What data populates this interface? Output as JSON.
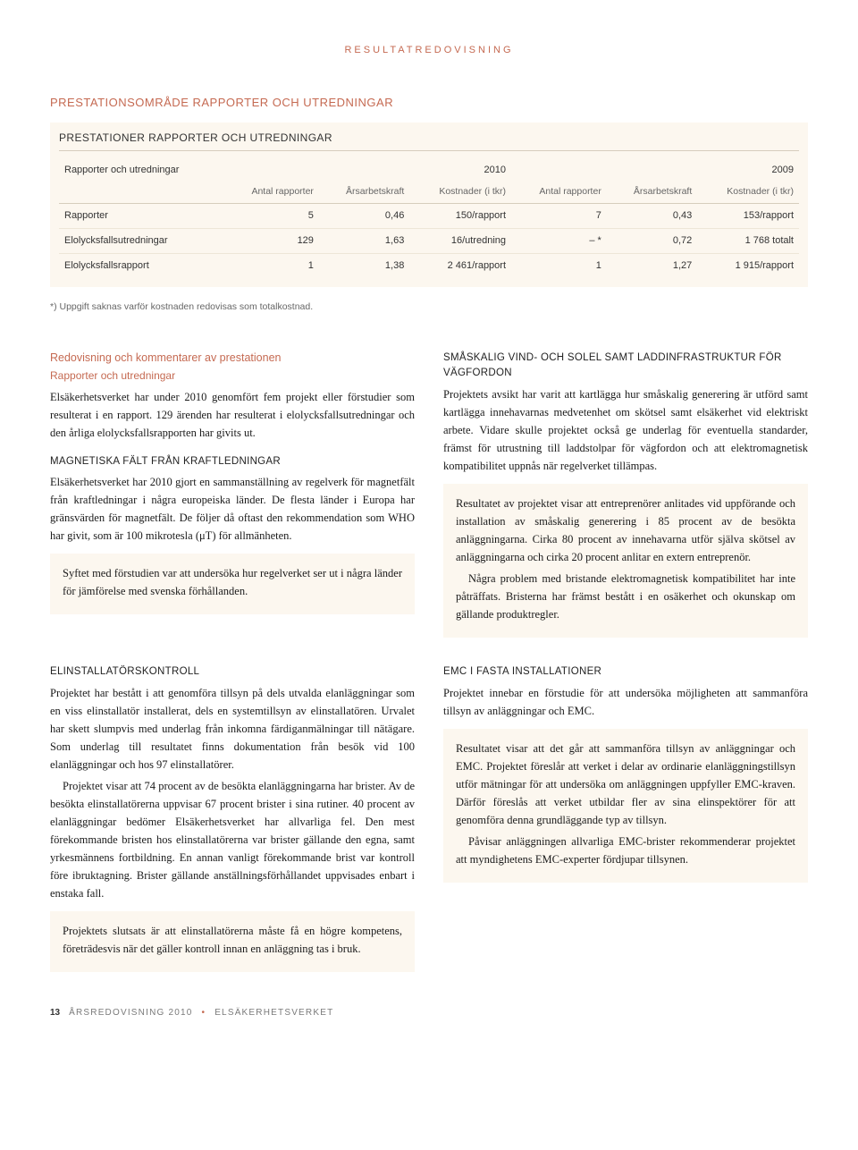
{
  "eyebrow": "RESULTATREDOVISNING",
  "section_title": "PRESTATIONSOMRÅDE RAPPORTER OCH UTREDNINGAR",
  "table": {
    "title": "PRESTATIONER RAPPORTER OCH UTREDNINGAR",
    "row_header": "Rapporter och utredningar",
    "year_2010": "2010",
    "year_2009": "2009",
    "col_antal": "Antal rapporter",
    "col_arbets": "Årsarbetskraft",
    "col_kost": "Kostnader (i tkr)",
    "rows": [
      {
        "label": "Rapporter",
        "a1": "5",
        "b1": "0,46",
        "c1": "150/rapport",
        "a2": "7",
        "b2": "0,43",
        "c2": "153/rapport"
      },
      {
        "label": "Elolycksfallsutredningar",
        "a1": "129",
        "b1": "1,63",
        "c1": "16/utredning",
        "a2": "– *",
        "b2": "0,72",
        "c2": "1 768 totalt"
      },
      {
        "label": "Elolycksfallsrapport",
        "a1": "1",
        "b1": "1,38",
        "c1": "2 461/rapport",
        "a2": "1",
        "b2": "1,27",
        "c2": "1 915/rapport"
      }
    ]
  },
  "footnote": "*) Uppgift saknas varför kostnaden redovisas som totalkostnad.",
  "left": {
    "heading": "Redovisning och kommentarer av prestationen",
    "sub": "Rapporter och utredningar",
    "p1": "Elsäkerhetsverket har under 2010 genomfört fem projekt eller förstudier som resulterat i en rapport. 129 ärenden har resulterat i elolycksfallsutredningar och den årliga elolycksfallsrapporten har givits ut.",
    "h_mag": "MAGNETISKA FÄLT FRÅN KRAFTLEDNINGAR",
    "p2": "Elsäkerhetsverket har 2010 gjort en sammanställning av regelverk för magnetfält från kraftledningar i några europeiska länder. De flesta länder i Europa har gränsvärden för magnetfält. De följer då oftast den rekommendation som WHO har givit, som är 100 mikrotesla (μT) för allmänheten.",
    "callout1": "Syftet med förstudien var att undersöka hur regelverket ser ut i några länder för jämförelse med svenska förhållanden.",
    "h_elin": "ELINSTALLATÖRSKONTROLL",
    "p3": "Projektet har bestått i att genomföra tillsyn på dels utvalda elanläggningar som en viss elinstallatör installerat, dels en systemtillsyn av elinstallatören. Urvalet har skett slumpvis med underlag från inkomna färdiganmälningar till nätägare. Som underlag till resultatet finns dokumentation från besök vid 100 elanläggningar och hos 97 elinstallatörer.",
    "p4": "Projektet visar att 74 procent av de besökta elanläggningarna har brister. Av de besökta elinstallatörerna uppvisar 67 procent brister i sina rutiner. 40 procent av elanläggningar bedömer Elsäkerhetsverket har allvarliga fel. Den mest förekommande bristen hos elinstallatörerna var brister gällande den egna, samt yrkesmännens fortbildning. En annan vanligt förekommande brist var kontroll före ibruktagning. Brister gällande anställningsförhållandet uppvisades enbart i enstaka fall.",
    "callout2": "Projektets slutsats är att elinstallatörerna måste få en högre kompetens, företrädesvis när det gäller kontroll innan en anläggning tas i bruk."
  },
  "right": {
    "h_sma": "SMÅSKALIG VIND- OCH SOLEL SAMT LADDINFRASTRUKTUR FÖR VÄGFORDON",
    "p1": "Projektets avsikt har varit att kartlägga hur småskalig generering är utförd samt kartlägga innehavarnas medvetenhet om skötsel samt elsäkerhet vid elektriskt arbete. Vidare skulle projektet också ge underlag för eventuella standarder, främst för utrustning till laddstolpar för vägfordon och att elektromagnetisk kompatibilitet uppnås när regelverket tillämpas.",
    "callout1a": "Resultatet av projektet visar att entreprenörer anlitades vid uppförande och installation av småskalig generering i 85 procent av de besökta anläggningarna. Cirka 80 procent av innehavarna utför själva skötsel av anläggningarna och cirka 20 procent anlitar en extern entreprenör.",
    "callout1b": "Några problem med bristande elektromagnetisk kompatibilitet har inte påträffats. Bristerna har främst bestått i en osäkerhet och okunskap om gällande produktregler.",
    "h_emc": "EMC I FASTA INSTALLATIONER",
    "p2": "Projektet innebar en förstudie för att undersöka möjligheten att sammanföra tillsyn av anläggningar och EMC.",
    "callout2a": "Resultatet visar att det går att sammanföra tillsyn av anläggningar och EMC. Projektet föreslår att verket i delar av ordinarie elanläggningstillsyn utför mätningar för att undersöka om anläggningen uppfyller EMC-kraven. Därför föreslås att verket utbildar fler av sina elinspektörer för att genomföra denna grundläggande typ av tillsyn.",
    "callout2b": "Påvisar anläggningen allvarliga EMC-brister rekommenderar projektet att myndighetens EMC-experter fördjupar tillsynen."
  },
  "footer": {
    "page": "13",
    "left": "ÅRSREDOVISNING 2010",
    "right": "ELSÄKERHETSVERKET"
  }
}
